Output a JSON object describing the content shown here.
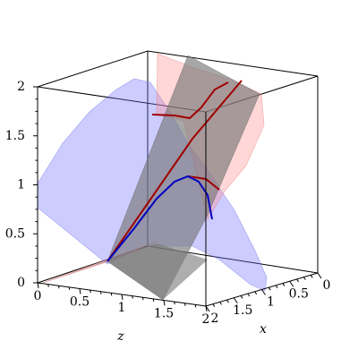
{
  "chart_data": {
    "type": "surface3d",
    "xlabel": "x",
    "zlabel": "z",
    "vlim": [
      0,
      2
    ],
    "vticks": [
      0,
      0.5,
      1,
      1.5,
      2
    ],
    "zlim": [
      0,
      2
    ],
    "zticks": [
      0,
      0.5,
      1,
      1.5,
      2
    ],
    "xlim": [
      0,
      2
    ],
    "xticks": [
      0,
      0.5,
      1,
      1.5,
      2
    ]
  }
}
